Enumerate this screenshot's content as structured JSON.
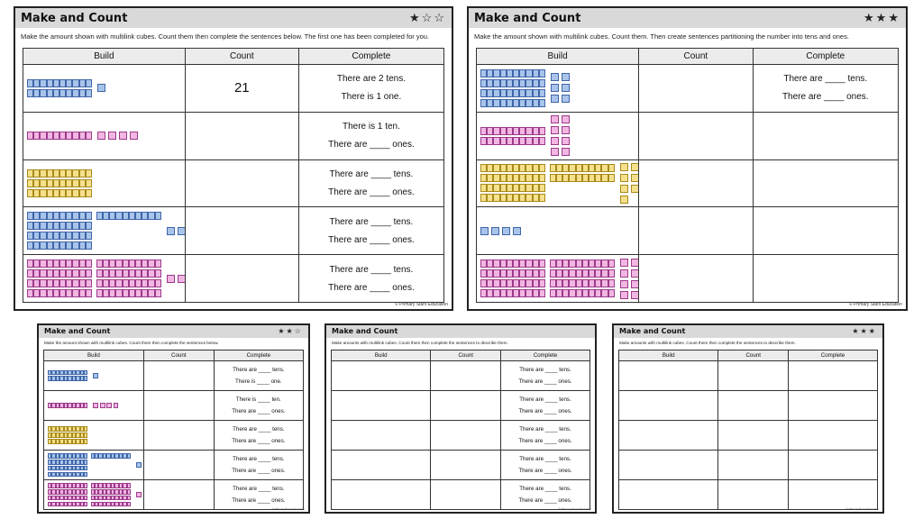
{
  "copyright": "© Primary Stars Education",
  "headers": {
    "build": "Build",
    "count": "Count",
    "complete": "Complete"
  },
  "sheets": [
    {
      "title": "Make and Count",
      "stars": "★☆☆",
      "instruction": "Make the amount shown with multilink cubes. Count them then complete the sentences below. The first one has been completed for you.",
      "rows": [
        {
          "color": "blue",
          "tens": 2,
          "ones": 1,
          "count": "21",
          "sentences": [
            "There are 2 tens.",
            "There is 1 one."
          ]
        },
        {
          "color": "pink",
          "tens": 1,
          "ones": 4,
          "count": "",
          "sentences": [
            "There is 1 ten.",
            "There are ____ ones."
          ]
        },
        {
          "color": "yellow",
          "tens": 3,
          "ones": 0,
          "count": "",
          "sentences": [
            "There are ____ tens.",
            "There are ____ ones."
          ]
        },
        {
          "color": "blue",
          "tens": 5,
          "ones": 4,
          "count": "",
          "sentences": [
            "There are ____ tens.",
            "There are ____ ones."
          ]
        },
        {
          "color": "pink",
          "tens": 8,
          "ones": 2,
          "count": "",
          "sentences": [
            "There are ____ tens.",
            "There are ____ ones."
          ]
        }
      ]
    },
    {
      "title": "Make and Count",
      "stars": "★★★",
      "instruction": "Make the amount shown with multilink cubes. Count them. Then create sentences partitioning the number into tens and ones.",
      "rows": [
        {
          "color": "blue",
          "tens": 4,
          "ones": 6,
          "count": "",
          "sentences": [
            "There are ____ tens.",
            "There are ____ ones."
          ]
        },
        {
          "color": "pink",
          "tens": 2,
          "ones": 8,
          "count": "",
          "sentences": []
        },
        {
          "color": "yellow",
          "tens": 6,
          "ones": 7,
          "count": "",
          "sentences": []
        },
        {
          "color": "blue",
          "tens": 0,
          "ones": 4,
          "count": "",
          "sentences": []
        },
        {
          "color": "pink",
          "tens": 8,
          "ones": 8,
          "count": "",
          "sentences": []
        }
      ]
    },
    {
      "title": "Make and Count",
      "stars": "★★☆",
      "instruction": "Make the amount shown with multilink cubes. Count them then complete the sentences below.",
      "rows": [
        {
          "color": "blue",
          "tens": 2,
          "ones": 1,
          "count": "",
          "sentences": [
            "There are ____ tens.",
            "There is ____ one."
          ]
        },
        {
          "color": "pink",
          "tens": 1,
          "ones": 4,
          "count": "",
          "sentences": [
            "There is ____ ten.",
            "There are ____ ones."
          ]
        },
        {
          "color": "yellow",
          "tens": 3,
          "ones": 0,
          "count": "",
          "sentences": [
            "There are ____ tens.",
            "There are ____ ones."
          ]
        },
        {
          "color": "blue",
          "tens": 5,
          "ones": 4,
          "count": "",
          "sentences": [
            "There are ____ tens.",
            "There are ____ ones."
          ]
        },
        {
          "color": "pink",
          "tens": 8,
          "ones": 2,
          "count": "",
          "sentences": [
            "There are ____ tens.",
            "There are ____ ones."
          ]
        }
      ]
    },
    {
      "title": "Make and Count",
      "stars": "",
      "instruction": "Make amounts with multilink cubes. Count them then complete the sentences to describe them.",
      "rows": [
        {
          "color": "blue",
          "tens": 0,
          "ones": 0,
          "count": "",
          "sentences": [
            "There are ____ tens.",
            "There are ____ ones."
          ]
        },
        {
          "color": "blue",
          "tens": 0,
          "ones": 0,
          "count": "",
          "sentences": [
            "There are ____ tens.",
            "There are ____ ones."
          ]
        },
        {
          "color": "blue",
          "tens": 0,
          "ones": 0,
          "count": "",
          "sentences": [
            "There are ____ tens.",
            "There are ____ ones."
          ]
        },
        {
          "color": "blue",
          "tens": 0,
          "ones": 0,
          "count": "",
          "sentences": [
            "There are ____ tens.",
            "There are ____ ones."
          ]
        },
        {
          "color": "blue",
          "tens": 0,
          "ones": 0,
          "count": "",
          "sentences": [
            "There are ____ tens.",
            "There are ____ ones."
          ]
        }
      ]
    },
    {
      "title": "Make and Count",
      "stars": "★★★",
      "instruction": "Make amounts with multilink cubes. Count them then complete the sentences to describe them.",
      "rows": [
        {
          "color": "blue",
          "tens": 0,
          "ones": 0,
          "count": "",
          "sentences": []
        },
        {
          "color": "blue",
          "tens": 0,
          "ones": 0,
          "count": "",
          "sentences": []
        },
        {
          "color": "blue",
          "tens": 0,
          "ones": 0,
          "count": "",
          "sentences": []
        },
        {
          "color": "blue",
          "tens": 0,
          "ones": 0,
          "count": "",
          "sentences": []
        },
        {
          "color": "blue",
          "tens": 0,
          "ones": 0,
          "count": "",
          "sentences": []
        }
      ]
    }
  ]
}
